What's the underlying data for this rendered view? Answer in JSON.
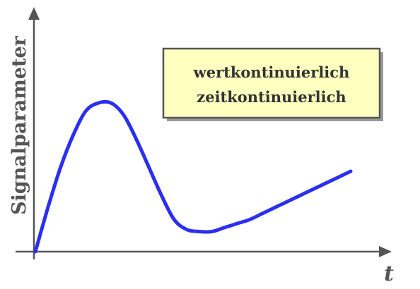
{
  "chart_data": {
    "type": "line",
    "title": "",
    "xlabel": "t",
    "ylabel": "Signalparameter",
    "grid": false,
    "legend_placement": "top-right",
    "annotation": {
      "lines": [
        "wertkontinuierlich",
        "zeitkontinuierlich"
      ]
    },
    "xlim": [
      0,
      100
    ],
    "ylim": [
      0,
      100
    ],
    "series": [
      {
        "color": "#2a2ff0",
        "x": [
          0,
          4,
          8,
          12,
          16,
          20,
          24,
          28,
          32,
          36,
          40,
          44,
          48,
          52,
          56,
          60,
          64,
          68,
          72,
          76,
          80,
          84,
          88,
          92,
          96,
          100
        ],
        "y": [
          0,
          22,
          42,
          58,
          70,
          74,
          74,
          68,
          56,
          42,
          28,
          16,
          11,
          10,
          10,
          12,
          14,
          16,
          19,
          22,
          25,
          28,
          31,
          34,
          37,
          40
        ]
      }
    ]
  }
}
